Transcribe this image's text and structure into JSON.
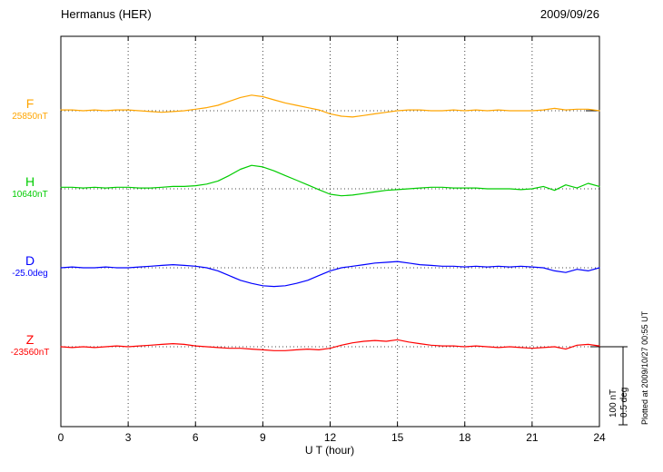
{
  "header": {
    "station": "Hermanus (HER)",
    "date": "2009/09/26"
  },
  "footer": {
    "plotted_at": "Plotted at 2009/10/27 00:55 UT"
  },
  "scale_bar": {
    "amplitude_nt": "100 nT",
    "amplitude_deg": "0.5 deg"
  },
  "chart_data": {
    "type": "line",
    "title": "Hermanus (HER)",
    "date": "2009/09/26",
    "xlabel": "U T (hour)",
    "x_ticks": [
      0,
      3,
      6,
      9,
      12,
      15,
      18,
      21,
      24
    ],
    "x_range": [
      0,
      24
    ],
    "x_step_hours": 0.5,
    "grid": "dotted vertical lines every 3 h, dotted horizontal baseline per component",
    "legend_position": "left of each trace baseline",
    "series": [
      {
        "name": "F",
        "color": "#ffa500",
        "unit": "nT",
        "baseline_value": 25850,
        "baseline_label": "25850nT",
        "offsets": [
          1,
          1,
          0,
          1,
          0,
          1,
          1,
          0,
          -1,
          -2,
          -1,
          0,
          2,
          4,
          7,
          12,
          17,
          20,
          18,
          14,
          10,
          7,
          4,
          1,
          -4,
          -7,
          -8,
          -6,
          -4,
          -2,
          0,
          1,
          1,
          0,
          0,
          1,
          0,
          1,
          0,
          1,
          0,
          0,
          0,
          1,
          3,
          1,
          2,
          2,
          0
        ]
      },
      {
        "name": "H",
        "color": "#00cc00",
        "unit": "nT",
        "baseline_value": 10640,
        "baseline_label": "10640nT",
        "offsets": [
          2,
          2,
          1,
          2,
          1,
          2,
          2,
          1,
          1,
          2,
          3,
          3,
          4,
          6,
          10,
          17,
          25,
          30,
          28,
          23,
          17,
          11,
          5,
          -1,
          -7,
          -9,
          -8,
          -6,
          -4,
          -2,
          -1,
          0,
          1,
          2,
          2,
          1,
          1,
          1,
          0,
          0,
          0,
          -1,
          0,
          3,
          -2,
          5,
          1,
          7,
          3
        ]
      },
      {
        "name": "D",
        "color": "#0000ff",
        "unit": "deg",
        "baseline_value": -25.0,
        "baseline_label": "-25.0deg",
        "offsets": [
          0,
          0.005,
          0,
          0,
          0.005,
          0,
          0,
          0.005,
          0.01,
          0.015,
          0.02,
          0.015,
          0.01,
          0,
          -0.02,
          -0.05,
          -0.08,
          -0.1,
          -0.115,
          -0.12,
          -0.115,
          -0.1,
          -0.08,
          -0.05,
          -0.02,
          0,
          0.01,
          0.02,
          0.03,
          0.035,
          0.04,
          0.03,
          0.02,
          0.015,
          0.01,
          0.01,
          0.005,
          0.01,
          0.005,
          0.01,
          0.005,
          0.01,
          0.005,
          0,
          -0.02,
          -0.03,
          -0.01,
          -0.02,
          0
        ]
      },
      {
        "name": "Z",
        "color": "#ff0000",
        "unit": "nT",
        "baseline_value": -23560,
        "baseline_label": "-23560nT",
        "offsets": [
          0,
          -1,
          0,
          -1,
          0,
          1,
          0,
          1,
          2,
          3,
          4,
          3,
          1,
          0,
          -1,
          -2,
          -2,
          -3,
          -4,
          -5,
          -5,
          -4,
          -3,
          -4,
          -2,
          2,
          5,
          7,
          8,
          7,
          9,
          6,
          4,
          2,
          1,
          1,
          0,
          1,
          0,
          -1,
          0,
          -1,
          -2,
          -1,
          0,
          -3,
          2,
          3,
          1
        ]
      }
    ]
  }
}
